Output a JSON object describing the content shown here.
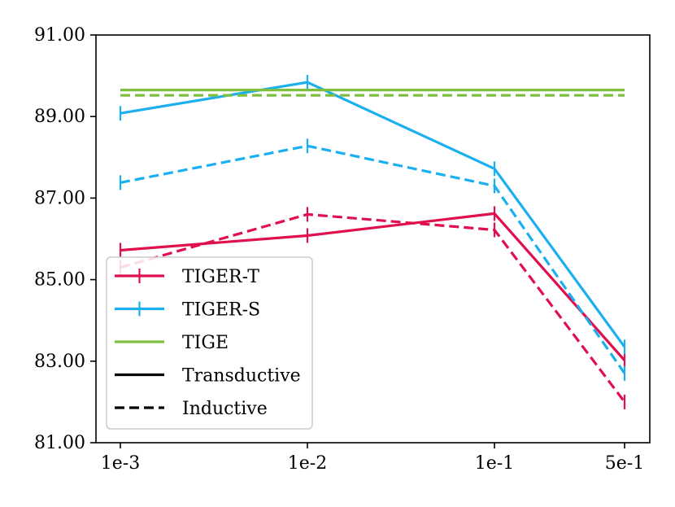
{
  "chart_data": {
    "type": "line",
    "categories": [
      "1e-3",
      "1e-2",
      "1e-1",
      "5e-1"
    ],
    "ylim": [
      81,
      91
    ],
    "yticks": [
      "81.00",
      "83.00",
      "85.00",
      "87.00",
      "89.00",
      "91.00"
    ],
    "ytick_values": [
      81,
      83,
      85,
      87,
      89,
      91
    ],
    "xlabel": "",
    "ylabel": "",
    "title": "",
    "grid": false,
    "legend_position": "lower-left",
    "series": [
      {
        "name": "TIGER-T",
        "setting": "Transductive",
        "color": "#e0104f",
        "dash": "solid",
        "markers": true,
        "values": [
          85.72,
          86.08,
          86.62,
          83.02
        ]
      },
      {
        "name": "TIGER-T",
        "setting": "Inductive",
        "color": "#e0104f",
        "dash": "dashed",
        "markers": true,
        "values": [
          85.3,
          86.6,
          86.22,
          82.0
        ]
      },
      {
        "name": "TIGER-S",
        "setting": "Transductive",
        "color": "#1ab0f0",
        "dash": "solid",
        "markers": true,
        "values": [
          89.08,
          89.84,
          87.72,
          83.35
        ]
      },
      {
        "name": "TIGER-S",
        "setting": "Inductive",
        "color": "#1ab0f0",
        "dash": "dashed",
        "markers": true,
        "values": [
          87.38,
          88.28,
          87.3,
          82.7
        ]
      },
      {
        "name": "TIGE",
        "setting": "Transductive",
        "color": "#7fbf3f",
        "dash": "solid",
        "markers": false,
        "values": [
          89.65,
          89.65,
          89.65,
          89.65
        ]
      },
      {
        "name": "TIGE",
        "setting": "Inductive",
        "color": "#7fbf3f",
        "dash": "dashed",
        "markers": false,
        "values": [
          89.52,
          89.52,
          89.52,
          89.52
        ]
      }
    ],
    "legend": [
      {
        "label": "TIGER-T",
        "color": "#e0104f",
        "dash": "solid",
        "marker": true
      },
      {
        "label": "TIGER-S",
        "color": "#1ab0f0",
        "dash": "solid",
        "marker": true
      },
      {
        "label": "TIGE",
        "color": "#7fbf3f",
        "dash": "solid",
        "marker": false
      },
      {
        "label": "Transductive",
        "color": "#000000",
        "dash": "solid",
        "marker": false
      },
      {
        "label": "Inductive",
        "color": "#000000",
        "dash": "dashed",
        "marker": false
      }
    ]
  }
}
